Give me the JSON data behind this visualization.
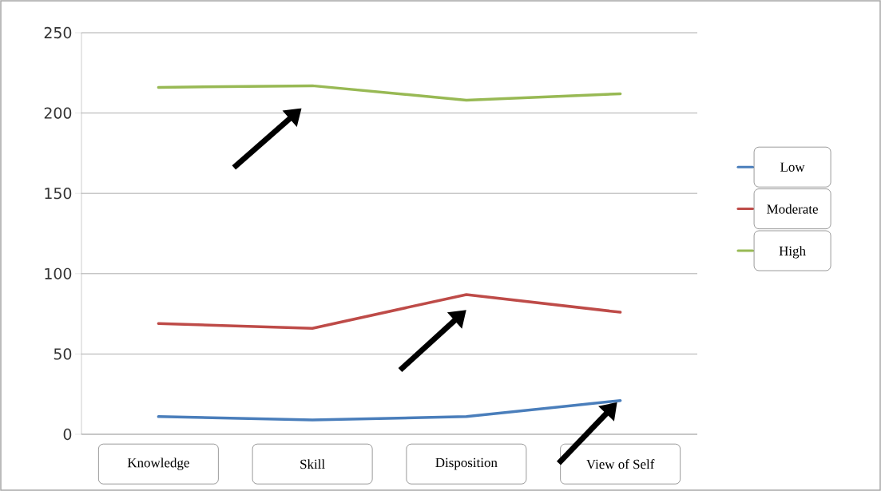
{
  "chart_data": {
    "type": "line",
    "categories": [
      "Knowledge",
      "Skill",
      "Disposition",
      "View of Self"
    ],
    "series": [
      {
        "name": "Low",
        "color": "#4a7ebb",
        "values": [
          11,
          9,
          11,
          21
        ]
      },
      {
        "name": "Moderate",
        "color": "#be4b48",
        "values": [
          69,
          66,
          87,
          76
        ]
      },
      {
        "name": "High",
        "color": "#98b954",
        "values": [
          216,
          217,
          208,
          212
        ]
      }
    ],
    "ylim": [
      0,
      250
    ],
    "yticks": [
      0,
      50,
      100,
      150,
      200,
      250
    ],
    "grid": "y",
    "legend": "right",
    "marker": "none",
    "line_style": "solid"
  }
}
